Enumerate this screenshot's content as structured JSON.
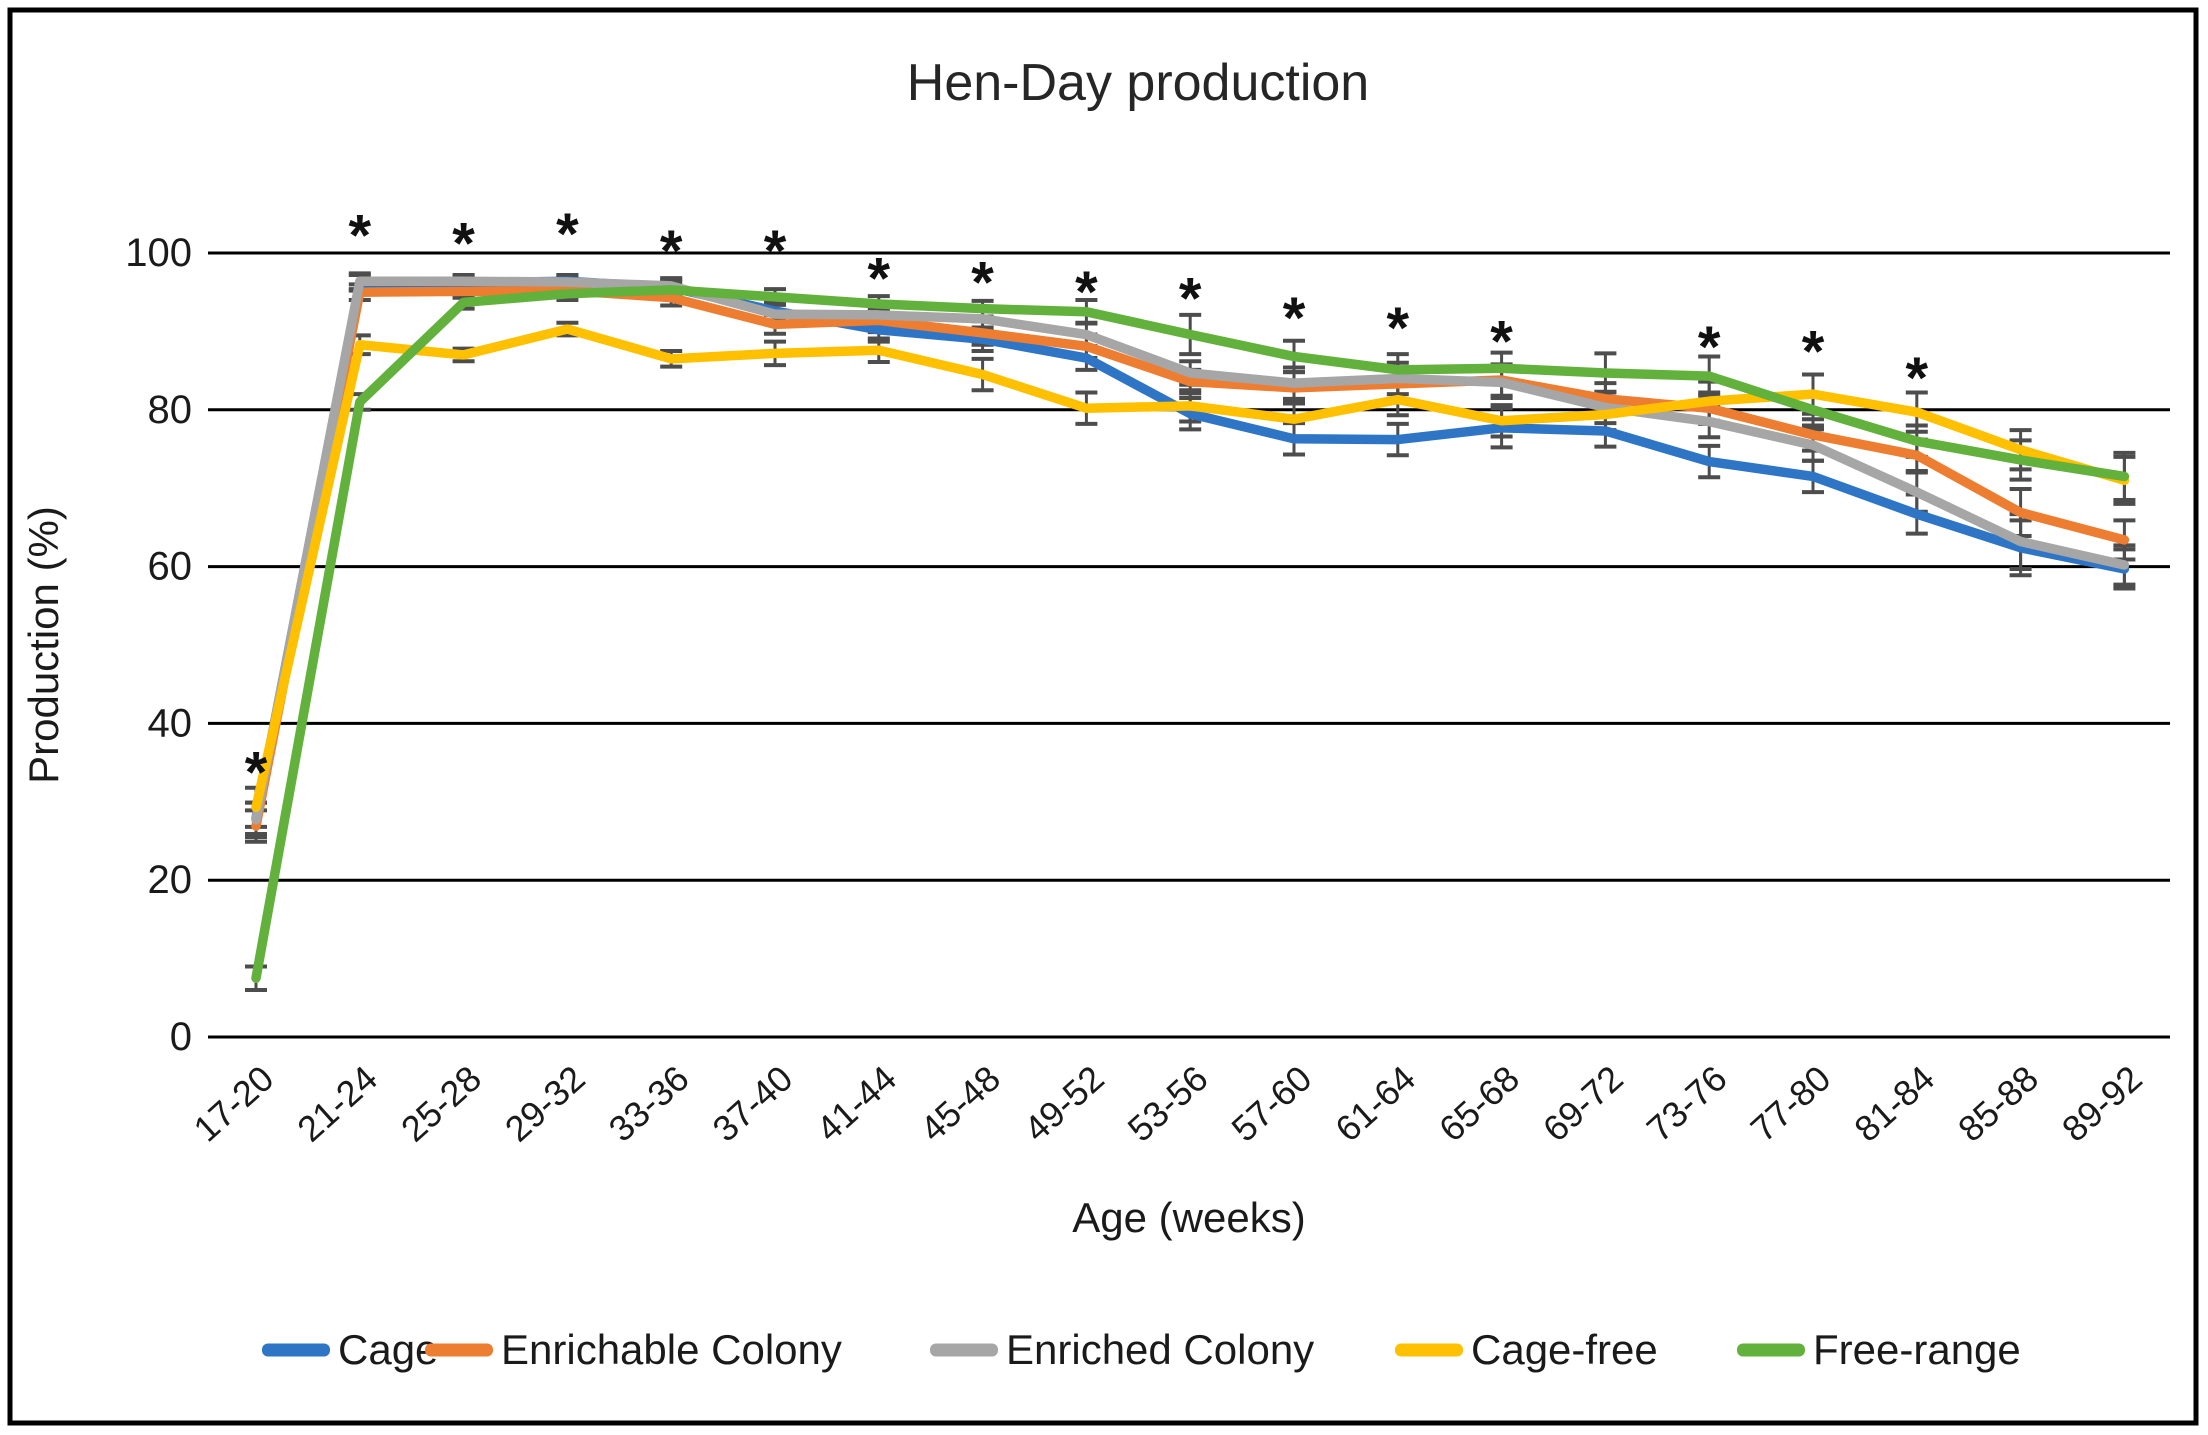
{
  "chart_data": {
    "type": "line",
    "title": "Hen-Day production",
    "xlabel": "Age (weeks)",
    "ylabel": "Production (%)",
    "ylim": [
      0,
      100
    ],
    "yticks": [
      0,
      20,
      40,
      60,
      80,
      100
    ],
    "grid": "horizontal-black",
    "legend_position": "bottom",
    "error_bar_color": "#4d4d4d",
    "gridline_color": "#000000",
    "significance_symbol": "*",
    "categories": [
      "17-20",
      "21-24",
      "25-28",
      "29-32",
      "33-36",
      "37-40",
      "41-44",
      "45-48",
      "49-52",
      "53-56",
      "57-60",
      "61-64",
      "65-68",
      "69-72",
      "73-76",
      "77-80",
      "81-84",
      "85-88",
      "89-92"
    ],
    "series": [
      {
        "name": "Cage",
        "color": "#2E75C6",
        "values": [
          27.9,
          96.2,
          96.2,
          96.4,
          95.6,
          92.6,
          90.2,
          89.0,
          86.6,
          79.5,
          76.3,
          76.2,
          77.7,
          77.3,
          73.4,
          71.5,
          66.7,
          62.4,
          59.7
        ],
        "errors": [
          2.0,
          1.0,
          0.8,
          0.8,
          1.0,
          1.2,
          1.5,
          1.5,
          1.5,
          2.0,
          2.0,
          2.0,
          2.5,
          2.0,
          2.0,
          2.0,
          2.5,
          3.5,
          2.5
        ]
      },
      {
        "name": "Enrichable Colony",
        "color": "#ED7D31",
        "values": [
          26.9,
          95.0,
          95.1,
          95.2,
          94.3,
          90.9,
          91.4,
          89.8,
          88.1,
          83.6,
          82.8,
          83.3,
          83.8,
          81.4,
          80.2,
          76.8,
          74.2,
          66.9,
          63.4
        ],
        "errors": [
          2.0,
          1.0,
          0.8,
          0.8,
          1.0,
          1.2,
          1.5,
          1.5,
          1.5,
          1.5,
          2.0,
          2.0,
          2.0,
          2.0,
          2.0,
          2.0,
          2.0,
          3.0,
          2.5
        ]
      },
      {
        "name": "Enriched Colony",
        "color": "#A6A6A6",
        "values": [
          27.7,
          96.4,
          96.4,
          96.3,
          95.8,
          92.2,
          92.1,
          91.6,
          89.6,
          84.7,
          83.4,
          84.0,
          83.5,
          80.3,
          78.5,
          75.5,
          69.5,
          63.2,
          60.2
        ],
        "errors": [
          2.2,
          1.0,
          0.8,
          0.8,
          1.0,
          1.2,
          1.5,
          1.5,
          1.5,
          1.5,
          2.0,
          2.0,
          2.0,
          2.0,
          2.0,
          2.0,
          2.5,
          3.5,
          2.5
        ]
      },
      {
        "name": "Cage-free",
        "color": "#FFC000",
        "values": [
          29.3,
          88.3,
          87.0,
          90.3,
          86.5,
          87.2,
          87.6,
          84.5,
          80.2,
          80.5,
          78.8,
          81.3,
          78.6,
          79.4,
          81.1,
          82.0,
          79.7,
          74.9,
          71.0
        ],
        "errors": [
          2.5,
          1.2,
          0.8,
          0.8,
          1.0,
          1.5,
          1.5,
          2.0,
          2.0,
          2.0,
          2.5,
          2.0,
          2.0,
          2.0,
          2.5,
          2.5,
          2.5,
          2.5,
          3.0
        ]
      },
      {
        "name": "Free-range",
        "color": "#62B13C",
        "values": [
          7.5,
          81.0,
          93.7,
          94.8,
          95.3,
          94.4,
          93.5,
          92.9,
          92.5,
          89.6,
          86.8,
          85.1,
          85.3,
          84.7,
          84.3,
          80.0,
          76.0,
          73.6,
          71.5
        ],
        "errors": [
          1.5,
          1.0,
          0.8,
          0.8,
          1.0,
          1.0,
          1.0,
          1.0,
          1.5,
          2.5,
          2.0,
          2.0,
          2.0,
          2.5,
          2.5,
          2.0,
          2.0,
          2.5,
          3.0
        ]
      }
    ],
    "significance_markers": [
      35,
      103.5,
      102.5,
      103.7,
      101.5,
      101.5,
      98,
      97.5,
      96.3,
      95.5,
      93,
      91.7,
      90,
      null,
      89.3,
      88.7,
      85.3,
      null,
      null
    ]
  }
}
